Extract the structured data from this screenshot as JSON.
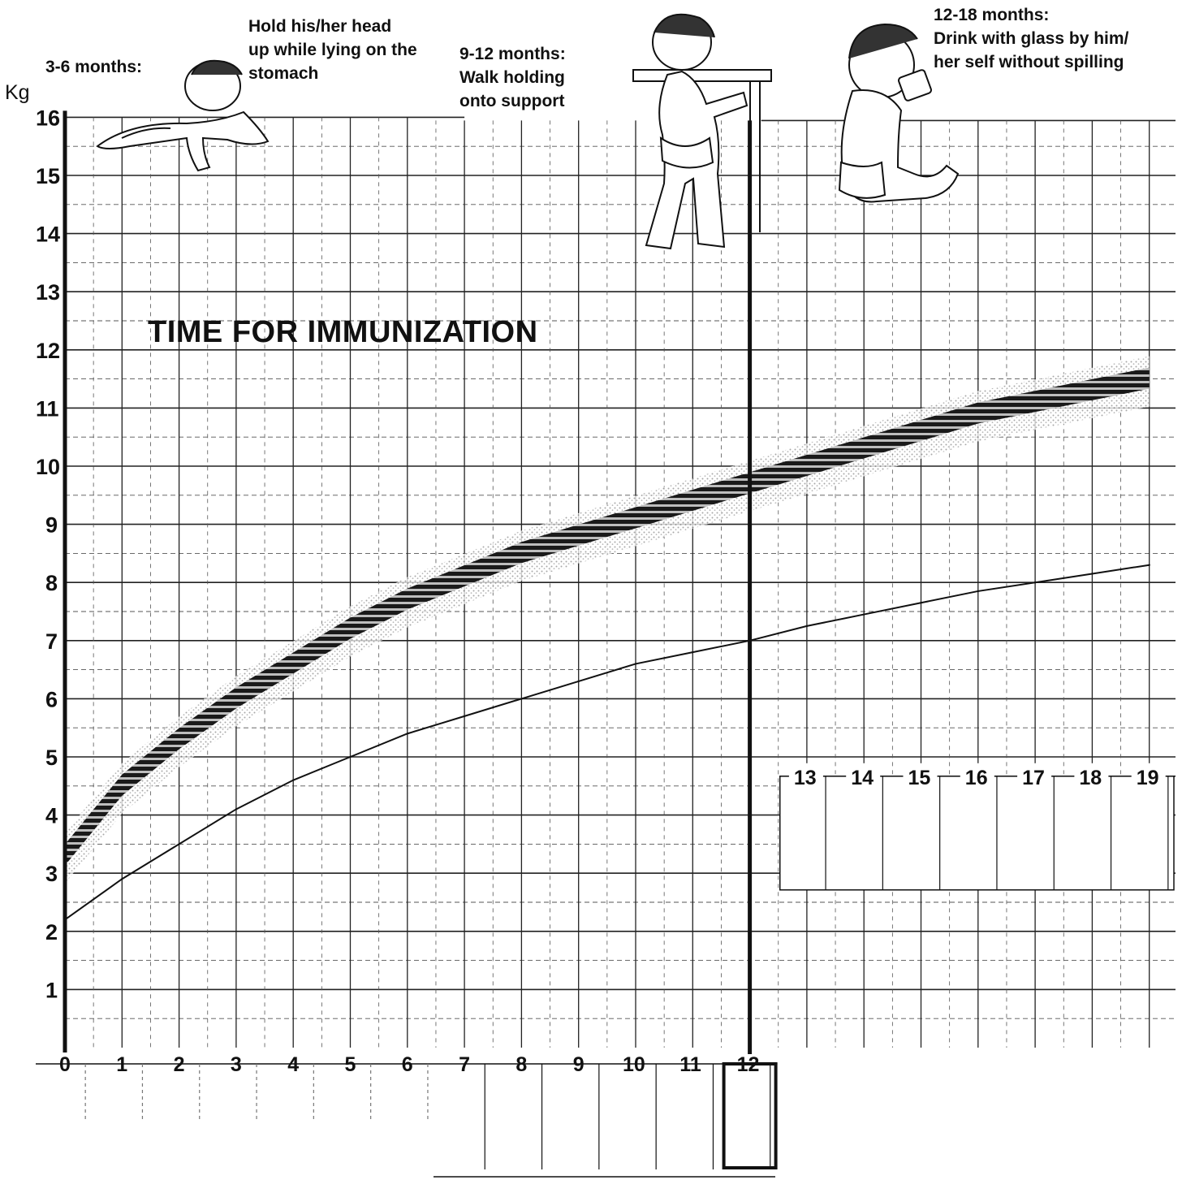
{
  "chart_data": {
    "type": "line",
    "title": "TIME FOR IMMUNIZATION",
    "ylabel": "Kg",
    "xlabel": "",
    "ylim": [
      0,
      16
    ],
    "xlim": [
      0,
      19
    ],
    "y_ticks": [
      "1",
      "2",
      "3",
      "4",
      "5",
      "6",
      "7",
      "8",
      "9",
      "10",
      "11",
      "12",
      "13",
      "14",
      "15",
      "16"
    ],
    "x_ticks": [
      "0",
      "1",
      "2",
      "3",
      "4",
      "5",
      "6",
      "7",
      "8",
      "9",
      "10",
      "11",
      "12",
      "13",
      "14",
      "15",
      "16",
      "17",
      "18",
      "19"
    ],
    "series": [
      {
        "x": [
          0,
          1,
          2,
          3,
          4,
          5,
          6,
          7,
          8,
          9,
          10,
          11,
          12,
          13,
          14,
          15,
          16,
          17,
          18,
          19
        ],
        "values": [
          3.3,
          4.5,
          5.3,
          6.0,
          6.6,
          7.2,
          7.7,
          8.1,
          8.5,
          8.8,
          9.1,
          9.4,
          9.7,
          10.0,
          10.3,
          10.6,
          10.9,
          11.1,
          11.3,
          11.5
        ],
        "style": "dark hatched band"
      },
      {
        "x": [
          0,
          1,
          2,
          3,
          4,
          5,
          6,
          7,
          8,
          9,
          10,
          11,
          12,
          13,
          14,
          15,
          16,
          17,
          18,
          19
        ],
        "values": [
          2.2,
          2.9,
          3.5,
          4.1,
          4.6,
          5.0,
          5.4,
          5.7,
          6.0,
          6.3,
          6.6,
          6.8,
          7.0,
          7.25,
          7.45,
          7.65,
          7.85,
          8.0,
          8.15,
          8.3
        ],
        "style": "thin line"
      }
    ],
    "grid": true,
    "colors": {
      "ink": "#111111",
      "grid": "#222222",
      "band": "#1a1a1a",
      "stipple": "#9a9a9a"
    }
  },
  "annotations": {
    "stage_3_6": {
      "heading": "3-6 months:",
      "lines": [
        "Hold his/her head",
        "up while lying on the",
        "stomach"
      ]
    },
    "stage_9_12": {
      "lines": [
        "9-12 months:",
        "Walk holding",
        "onto support"
      ]
    },
    "stage_12_18": {
      "lines": [
        "12-18 months:",
        "Drink with glass by him/",
        "her self without spilling"
      ]
    }
  },
  "icons": [
    "crawling-baby-illustration",
    "standing-baby-illustration",
    "sitting-baby-drinking-illustration"
  ]
}
